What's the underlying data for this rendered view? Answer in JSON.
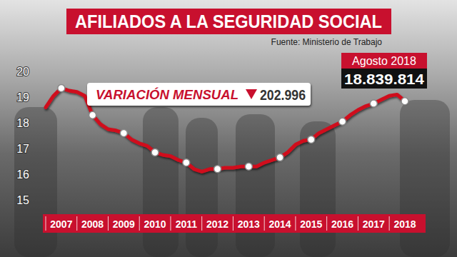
{
  "chart_data": {
    "type": "line",
    "title": "AFILIADOS A LA SEGURIDAD SOCIAL",
    "source": "Fuente: Ministerio de Trabajo",
    "categories": [
      null,
      null,
      "2007",
      null,
      null,
      null,
      "2008",
      null,
      null,
      null,
      "2009",
      null,
      null,
      null,
      "2010",
      null,
      null,
      null,
      "2011",
      null,
      null,
      null,
      "2012",
      null,
      null,
      null,
      "2013",
      null,
      null,
      null,
      "2014",
      null,
      null,
      null,
      "2015",
      null,
      null,
      null,
      "2016",
      null,
      null,
      null,
      "2017",
      null,
      null,
      null,
      "2018"
    ],
    "values": [
      18.6,
      19.05,
      19.35,
      19.25,
      19.2,
      19.05,
      18.3,
      17.95,
      17.75,
      17.7,
      17.6,
      17.35,
      17.2,
      17.1,
      16.85,
      16.75,
      16.7,
      16.55,
      16.45,
      16.2,
      16.1,
      16.2,
      16.2,
      16.25,
      16.25,
      16.3,
      16.3,
      16.3,
      16.45,
      16.55,
      16.65,
      16.85,
      17.15,
      17.3,
      17.35,
      17.6,
      17.75,
      17.9,
      18.05,
      18.3,
      18.5,
      18.65,
      18.75,
      18.9,
      19.05,
      19.1,
      18.839814
    ],
    "color": "#d0101e",
    "marker": "circle",
    "line_style": "solid",
    "grid": false,
    "ylim": [
      15,
      20
    ],
    "yticks": [
      15,
      16,
      17,
      18,
      19,
      20
    ],
    "annotations": [
      {
        "label": "VARIACIÓN MENSUAL",
        "value": -0.202996,
        "value_label": "202.996"
      },
      {
        "label": "Agosto 2018",
        "text": "18.839.814"
      }
    ]
  }
}
